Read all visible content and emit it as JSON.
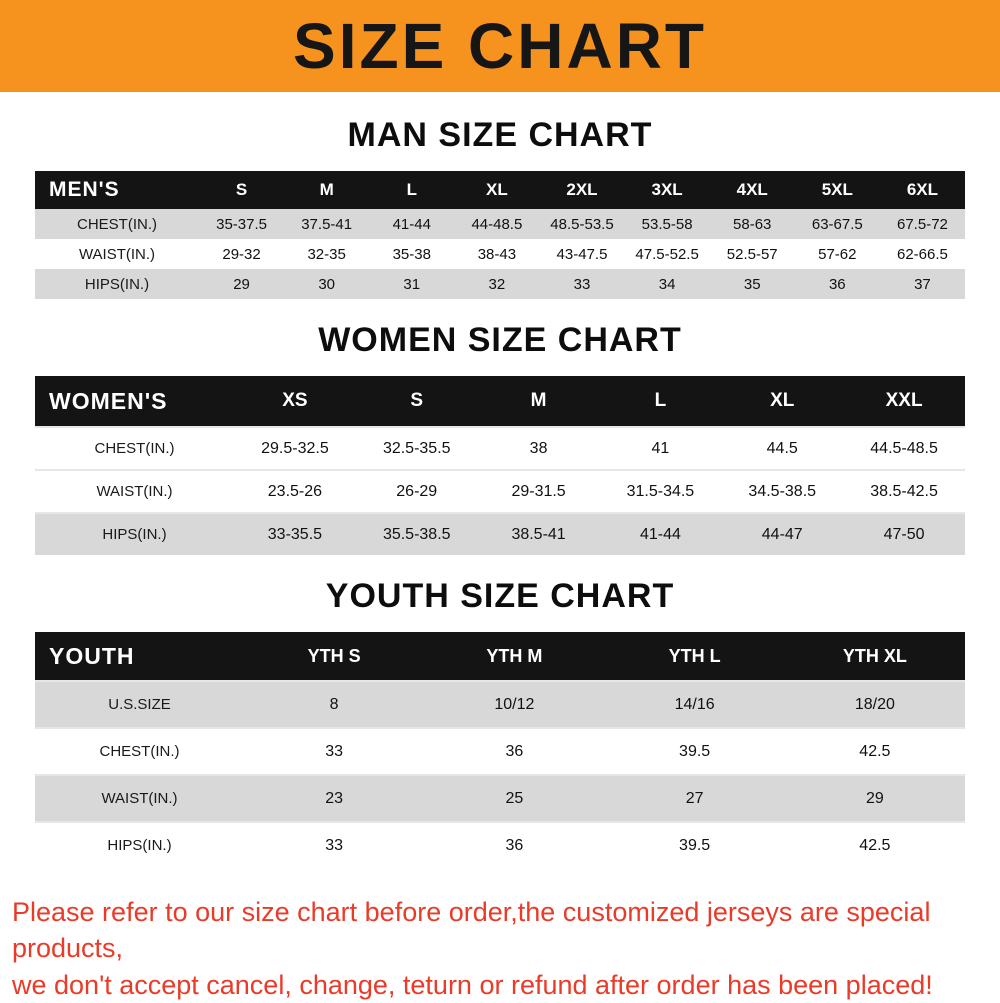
{
  "banner": {
    "title": "SIZE CHART"
  },
  "colors": {
    "banner_bg": "#f6921e",
    "table_header_bg": "#141414",
    "shaded_row": "#d8d8d8",
    "footer_text": "#ea3b28"
  },
  "sections": {
    "men": {
      "heading": "MAN SIZE CHART",
      "table": {
        "header": [
          "MEN'S",
          "S",
          "M",
          "L",
          "XL",
          "2XL",
          "3XL",
          "4XL",
          "5XL",
          "6XL"
        ],
        "rows": [
          {
            "label": "CHEST(IN.)",
            "values": [
              "35-37.5",
              "37.5-41",
              "41-44",
              "44-48.5",
              "48.5-53.5",
              "53.5-58",
              "58-63",
              "63-67.5",
              "67.5-72"
            ],
            "shaded": true
          },
          {
            "label": "WAIST(IN.)",
            "values": [
              "29-32",
              "32-35",
              "35-38",
              "38-43",
              "43-47.5",
              "47.5-52.5",
              "52.5-57",
              "57-62",
              "62-66.5"
            ],
            "shaded": false
          },
          {
            "label": "HIPS(IN.)",
            "values": [
              "29",
              "30",
              "31",
              "32",
              "33",
              "34",
              "35",
              "36",
              "37"
            ],
            "shaded": true
          }
        ]
      }
    },
    "women": {
      "heading": "WOMEN SIZE CHART",
      "table": {
        "header": [
          "WOMEN'S",
          "XS",
          "S",
          "M",
          "L",
          "XL",
          "XXL"
        ],
        "rows": [
          {
            "label": "CHEST(IN.)",
            "values": [
              "29.5-32.5",
              "32.5-35.5",
              "38",
              "41",
              "44.5",
              "44.5-48.5"
            ],
            "shaded": false
          },
          {
            "label": "WAIST(IN.)",
            "values": [
              "23.5-26",
              "26-29",
              "29-31.5",
              "31.5-34.5",
              "34.5-38.5",
              "38.5-42.5"
            ],
            "shaded": false
          },
          {
            "label": "HIPS(IN.)",
            "values": [
              "33-35.5",
              "35.5-38.5",
              "38.5-41",
              "41-44",
              "44-47",
              "47-50"
            ],
            "shaded": true
          }
        ]
      }
    },
    "youth": {
      "heading": "YOUTH SIZE CHART",
      "table": {
        "header": [
          "YOUTH",
          "YTH S",
          "YTH M",
          "YTH L",
          "YTH XL"
        ],
        "rows": [
          {
            "label": "U.S.SIZE",
            "values": [
              "8",
              "10/12",
              "14/16",
              "18/20"
            ],
            "shaded": true
          },
          {
            "label": "CHEST(IN.)",
            "values": [
              "33",
              "36",
              "39.5",
              "42.5"
            ],
            "shaded": false
          },
          {
            "label": "WAIST(IN.)",
            "values": [
              "23",
              "25",
              "27",
              "29"
            ],
            "shaded": true
          },
          {
            "label": "HIPS(IN.)",
            "values": [
              "33",
              "36",
              "39.5",
              "42.5"
            ],
            "shaded": false
          }
        ]
      }
    }
  },
  "footer": {
    "line1": "Please refer to our size chart before order,the customized jerseys are special products,",
    "line2": "we don't accept cancel, change, teturn or refund after order has been placed!"
  }
}
